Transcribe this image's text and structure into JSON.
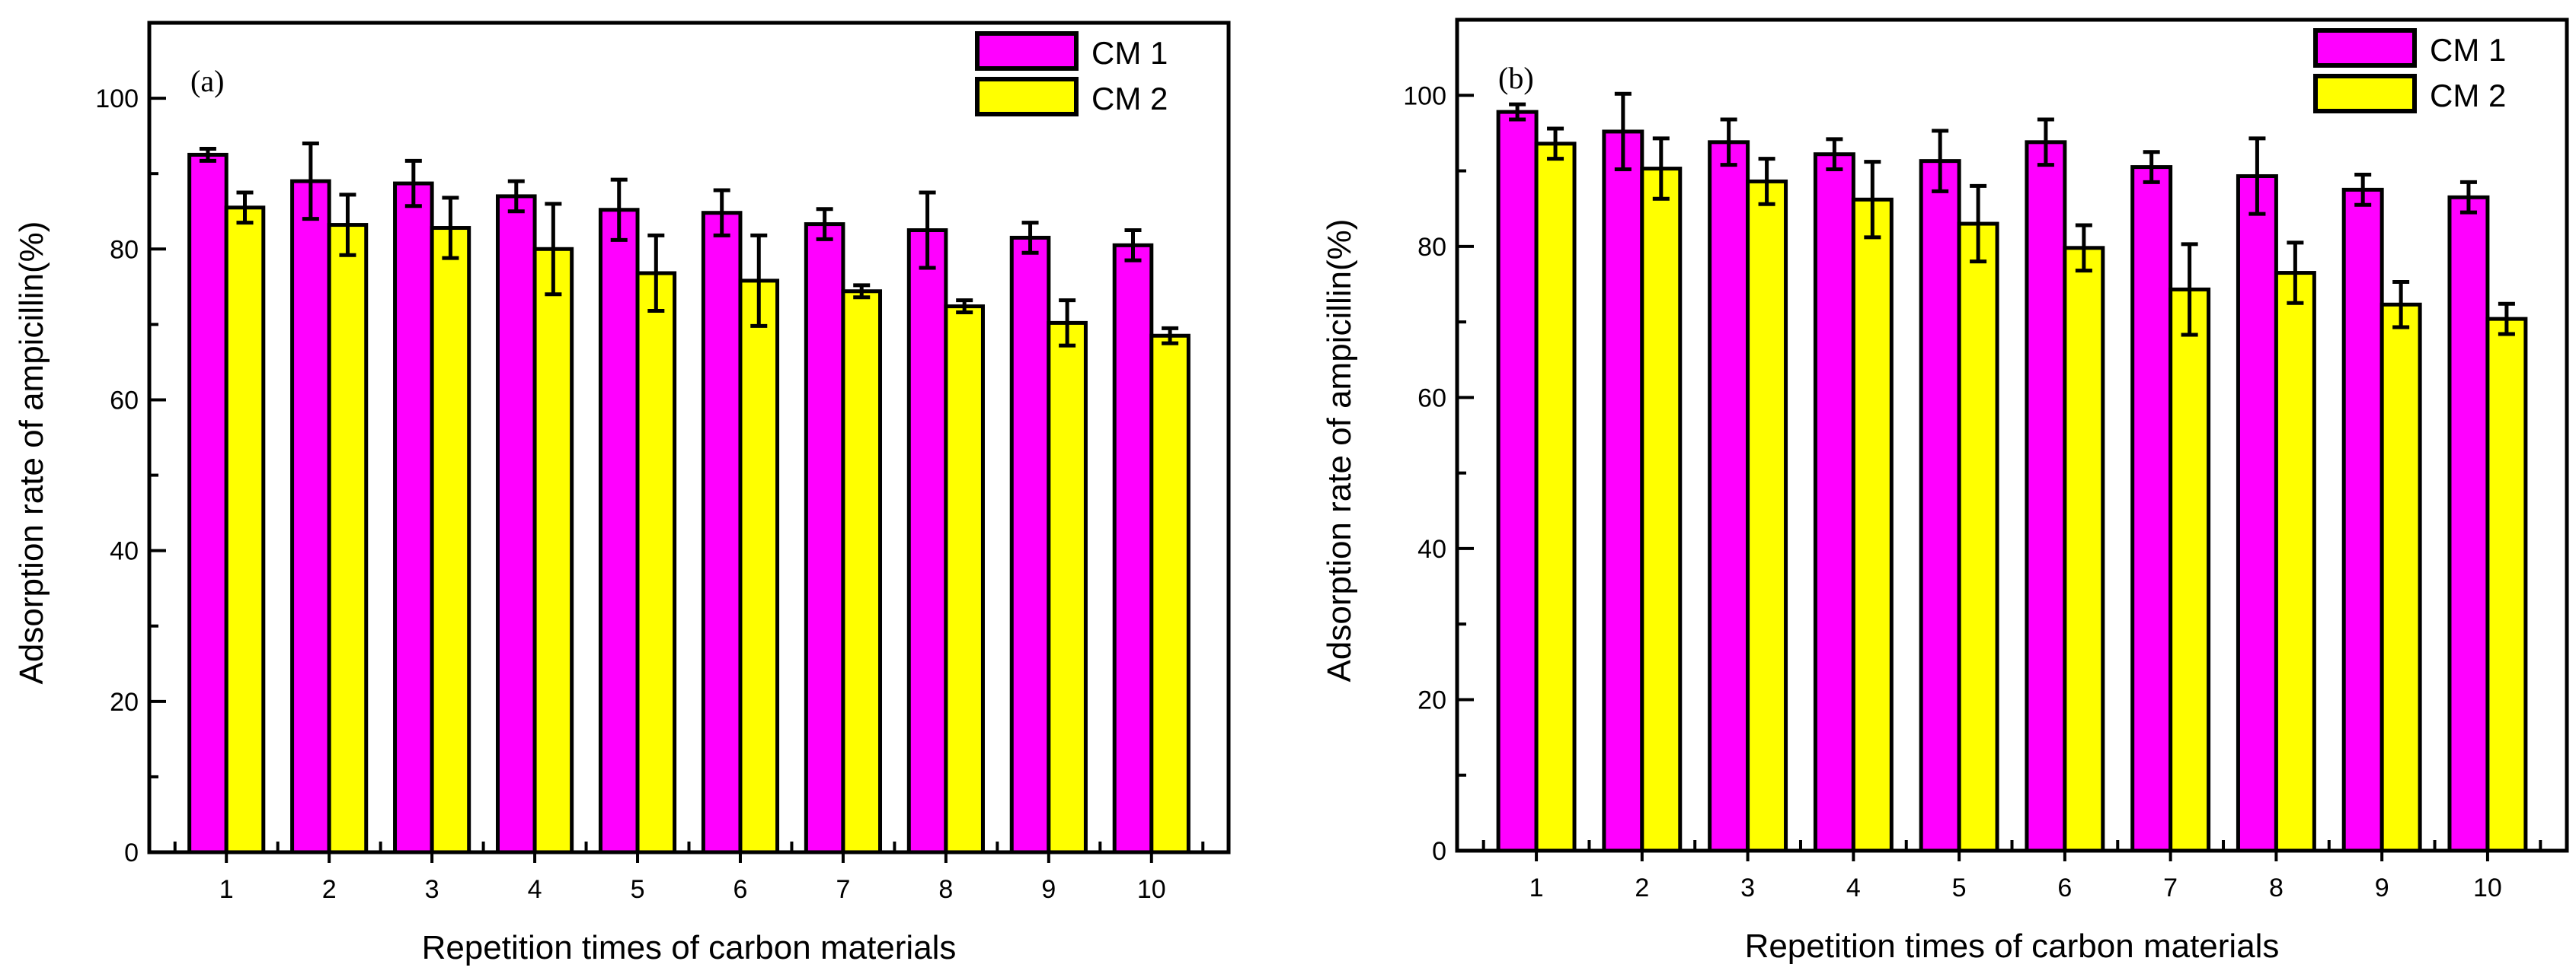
{
  "colors": {
    "cm1": "#ff00ff",
    "cm2": "#ffff00",
    "stroke": "#000000"
  },
  "chart_data": [
    {
      "type": "bar",
      "panel_label": "(a)",
      "title": "",
      "xlabel": "Repetition times of carbon materials",
      "ylabel": "Adsorption rate of ampicillin(%)",
      "ylim": [
        0,
        110
      ],
      "yticks": [
        0,
        20,
        40,
        60,
        80,
        100
      ],
      "categories": [
        "1",
        "2",
        "3",
        "4",
        "5",
        "6",
        "7",
        "8",
        "9",
        "10"
      ],
      "legend_position": "top-right",
      "series": [
        {
          "name": "CM 1",
          "values": [
            92.5,
            89.0,
            88.7,
            87.0,
            85.2,
            84.8,
            83.3,
            82.5,
            81.5,
            80.5
          ],
          "errors": [
            0.8,
            5.0,
            3.0,
            2.0,
            4.0,
            3.0,
            2.0,
            5.0,
            2.0,
            2.0
          ]
        },
        {
          "name": "CM 2",
          "values": [
            85.5,
            83.2,
            82.8,
            80.0,
            76.8,
            75.8,
            74.4,
            72.4,
            70.2,
            68.5
          ],
          "errors": [
            2.0,
            4.0,
            4.0,
            6.0,
            5.0,
            6.0,
            0.8,
            0.8,
            3.0,
            1.0
          ]
        }
      ]
    },
    {
      "type": "bar",
      "panel_label": "(b)",
      "title": "",
      "xlabel": "Repetition times of carbon materials",
      "ylabel": "Adsorption rate of ampicillin(%)",
      "ylim": [
        0,
        110
      ],
      "yticks": [
        0,
        20,
        40,
        60,
        80,
        100
      ],
      "categories": [
        "1",
        "2",
        "3",
        "4",
        "5",
        "6",
        "7",
        "8",
        "9",
        "10"
      ],
      "legend_position": "top-right",
      "series": [
        {
          "name": "CM 1",
          "values": [
            97.8,
            95.2,
            93.8,
            92.2,
            91.3,
            93.8,
            90.5,
            89.3,
            87.5,
            86.5
          ],
          "errors": [
            1.0,
            5.0,
            3.0,
            2.0,
            4.0,
            3.0,
            2.0,
            5.0,
            2.0,
            2.0
          ]
        },
        {
          "name": "CM 2",
          "values": [
            93.6,
            90.3,
            88.6,
            86.2,
            83.0,
            79.8,
            74.3,
            76.5,
            72.3,
            70.4
          ],
          "errors": [
            2.0,
            4.0,
            3.0,
            5.0,
            5.0,
            3.0,
            6.0,
            4.0,
            3.0,
            2.0
          ]
        }
      ]
    }
  ]
}
